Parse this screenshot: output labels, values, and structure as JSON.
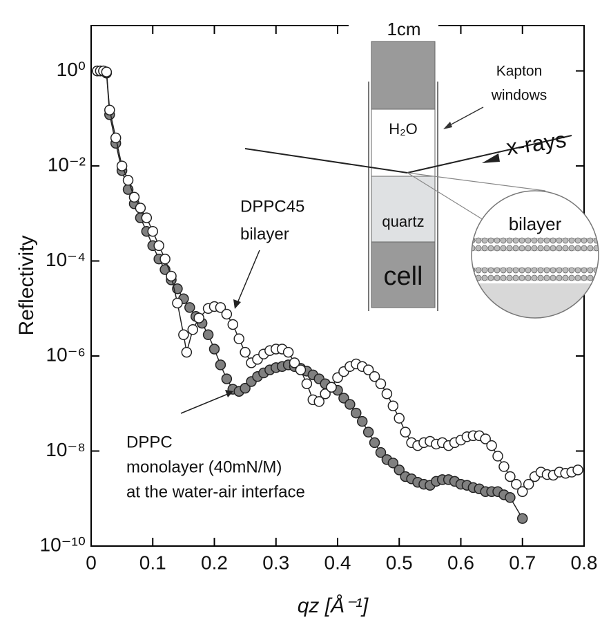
{
  "chart_data": {
    "type": "scatter",
    "ylabel": "Reflectivity",
    "xlabel": "qz [Å⁻¹]",
    "xlim": [
      0,
      0.8
    ],
    "xticks": [
      0,
      0.1,
      0.2,
      0.3,
      0.4,
      0.5,
      0.6,
      0.7,
      0.8
    ],
    "ylim": [
      1e-10,
      9
    ],
    "yscale": "log",
    "yticks": [
      {
        "value": 1,
        "label": "10⁰"
      },
      {
        "value": 0.01,
        "label": "10⁻²"
      },
      {
        "value": 0.0001,
        "label": "10⁻⁴"
      },
      {
        "value": 1e-06,
        "label": "10⁻⁶"
      },
      {
        "value": 1e-08,
        "label": "10⁻⁸"
      },
      {
        "value": 1e-10,
        "label": "10⁻¹⁰"
      }
    ],
    "series": [
      {
        "color": "#808080",
        "x": [
          0.01,
          0.015,
          0.02,
          0.025,
          0.03,
          0.04,
          0.05,
          0.06,
          0.07,
          0.08,
          0.09,
          0.1,
          0.11,
          0.12,
          0.13,
          0.14,
          0.15,
          0.16,
          0.17,
          0.18,
          0.19,
          0.2,
          0.21,
          0.22,
          0.23,
          0.24,
          0.25,
          0.26,
          0.27,
          0.28,
          0.29,
          0.3,
          0.31,
          0.32,
          0.33,
          0.34,
          0.35,
          0.36,
          0.37,
          0.38,
          0.39,
          0.4,
          0.41,
          0.42,
          0.43,
          0.44,
          0.45,
          0.46,
          0.47,
          0.48,
          0.49,
          0.5,
          0.51,
          0.52,
          0.53,
          0.54,
          0.55,
          0.56,
          0.57,
          0.58,
          0.59,
          0.6,
          0.61,
          0.62,
          0.63,
          0.64,
          0.65,
          0.66,
          0.67,
          0.68,
          0.7
        ],
        "values": [
          1,
          1,
          1,
          0.9,
          0.12,
          0.03,
          0.008,
          0.0032,
          0.0016,
          0.00081,
          0.00042,
          0.00021,
          0.00011,
          6.6e-05,
          4e-05,
          2.6e-05,
          1.6e-05,
          1.05e-05,
          6.8e-06,
          4.9e-06,
          2.8e-06,
          1.4e-06,
          6.5e-07,
          3.3e-07,
          2e-07,
          1.8e-07,
          2.1e-07,
          2.9e-07,
          3.7e-07,
          4.4e-07,
          5.1e-07,
          5.7e-07,
          6e-07,
          6.5e-07,
          6e-07,
          5.5e-07,
          4.8e-07,
          4e-07,
          3.3e-07,
          2.6e-07,
          2.2e-07,
          1.9e-07,
          1.3e-07,
          9.6e-08,
          6.3e-08,
          4.2e-08,
          2.5e-08,
          1.5e-08,
          9.3e-09,
          6.6e-09,
          5.6e-09,
          4e-09,
          2.9e-09,
          2.6e-09,
          2.2e-09,
          2e-09,
          1.9e-09,
          2.3e-09,
          2.5e-09,
          2.5e-09,
          2.3e-09,
          2e-09,
          1.9e-09,
          1.7e-09,
          1.6e-09,
          1.4e-09,
          1.4e-09,
          1.4e-09,
          1.2e-09,
          1.05e-09,
          3.8e-10
        ]
      },
      {
        "color": "#ffffff",
        "x": [
          0.01,
          0.015,
          0.02,
          0.025,
          0.03,
          0.04,
          0.05,
          0.06,
          0.07,
          0.08,
          0.09,
          0.1,
          0.11,
          0.12,
          0.13,
          0.14,
          0.15,
          0.155,
          0.165,
          0.175,
          0.19,
          0.2,
          0.21,
          0.22,
          0.23,
          0.24,
          0.25,
          0.26,
          0.27,
          0.28,
          0.29,
          0.3,
          0.31,
          0.32,
          0.33,
          0.34,
          0.35,
          0.36,
          0.37,
          0.38,
          0.39,
          0.4,
          0.41,
          0.42,
          0.43,
          0.44,
          0.45,
          0.46,
          0.47,
          0.48,
          0.49,
          0.5,
          0.51,
          0.52,
          0.53,
          0.54,
          0.55,
          0.56,
          0.57,
          0.58,
          0.59,
          0.6,
          0.61,
          0.62,
          0.63,
          0.64,
          0.65,
          0.66,
          0.67,
          0.68,
          0.69,
          0.7,
          0.71,
          0.72,
          0.73,
          0.74,
          0.75,
          0.76,
          0.77,
          0.78,
          0.79
        ],
        "values": [
          1,
          1,
          1,
          0.95,
          0.15,
          0.039,
          0.01,
          0.005,
          0.0022,
          0.0013,
          0.00081,
          0.00042,
          0.00021,
          0.00011,
          4.8e-05,
          1.3e-05,
          2.8e-06,
          1.2e-06,
          3.6e-06,
          6.3e-06,
          1e-05,
          1.1e-05,
          1.05e-05,
          7.6e-06,
          4.6e-06,
          2.3e-06,
          1.2e-06,
          7.2e-07,
          8.5e-07,
          1.1e-06,
          1.3e-06,
          1.4e-06,
          1.4e-06,
          1.2e-06,
          7.2e-07,
          5.1e-07,
          2.6e-07,
          1.2e-07,
          1.1e-07,
          1.6e-07,
          2.2e-07,
          3.5e-07,
          4.7e-07,
          6e-07,
          6.8e-07,
          6e-07,
          5.1e-07,
          3.7e-07,
          2.6e-07,
          1.6e-07,
          8.9e-08,
          4.9e-08,
          2.5e-08,
          1.5e-08,
          1.3e-08,
          1.5e-08,
          1.6e-08,
          1.4e-08,
          1.5e-08,
          1.3e-08,
          1.5e-08,
          1.7e-08,
          2e-08,
          2.1e-08,
          2.1e-08,
          1.8e-08,
          1.3e-08,
          7.8e-09,
          4.7e-09,
          2.9e-09,
          2e-09,
          1.4e-09,
          2e-09,
          2.9e-09,
          3.6e-09,
          3.2e-09,
          3.1e-09,
          3.6e-09,
          3.4e-09,
          3.6e-09,
          4e-09
        ]
      }
    ],
    "annotations": {
      "bilayer": [
        "DPPC45",
        "bilayer"
      ],
      "monolayer": [
        "DPPC",
        "monolayer  (40mN/M)",
        "at the water-air interface"
      ]
    },
    "inset": {
      "scale": "1cm",
      "windows": [
        "Kapton",
        "windows"
      ],
      "water": "H₂O",
      "beam": "x-rays",
      "substrate": "quartz",
      "cell": "cell",
      "zoom": "bilayer"
    }
  }
}
